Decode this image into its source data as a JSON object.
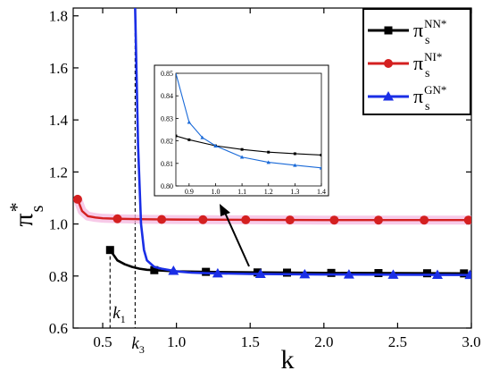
{
  "chart_data": {
    "type": "line",
    "xlabel": "k",
    "ylabel": "π",
    "ylabel_sup": "*",
    "ylabel_sub": "s",
    "xlim": [
      0.3,
      3.0
    ],
    "ylim": [
      0.6,
      1.83
    ],
    "xticks": [
      0.5,
      1.0,
      1.5,
      2.0,
      2.5,
      3.0
    ],
    "xtick_labels": [
      "0.5",
      "1.0",
      "1.5",
      "2.0",
      "2.5",
      "3.0"
    ],
    "yticks": [
      0.6,
      0.8,
      1.0,
      1.2,
      1.4,
      1.6,
      1.8
    ],
    "ytick_labels": [
      "0.6",
      "0.8",
      "1.0",
      "1.2",
      "1.4",
      "1.6",
      "1.8"
    ],
    "legend_position": "top-right",
    "series": [
      {
        "key": "nn",
        "name_base": "π",
        "name_sub": "s",
        "name_sup": "NN*",
        "color": "#000000",
        "marker": "square",
        "x": [
          0.55,
          0.6,
          0.65,
          0.7,
          0.75,
          0.8,
          0.9,
          1.0,
          1.2,
          1.5,
          2.0,
          2.5,
          3.0
        ],
        "y": [
          0.9,
          0.86,
          0.845,
          0.835,
          0.828,
          0.824,
          0.821,
          0.818,
          0.816,
          0.814,
          0.812,
          0.811,
          0.81
        ],
        "marker_x": [
          0.55,
          0.85,
          1.2,
          1.55,
          1.75,
          2.05,
          2.37,
          2.7,
          2.95
        ]
      },
      {
        "key": "ni",
        "name_base": "π",
        "name_sub": "s",
        "name_sup": "NI*",
        "color": "#d42020",
        "marker": "circle",
        "x": [
          0.33,
          0.36,
          0.4,
          0.45,
          0.5,
          0.6,
          0.8,
          1.0,
          1.5,
          2.0,
          2.5,
          3.0
        ],
        "y": [
          1.095,
          1.05,
          1.03,
          1.025,
          1.022,
          1.02,
          1.018,
          1.017,
          1.016,
          1.015,
          1.015,
          1.015
        ],
        "marker_x": [
          0.33,
          0.6,
          0.9,
          1.18,
          1.47,
          1.77,
          2.07,
          2.37,
          2.68,
          2.98
        ]
      },
      {
        "key": "gn",
        "name_base": "π",
        "name_sub": "s",
        "name_sup": "GN*",
        "color": "#1a2ee6",
        "marker": "triangle",
        "x": [
          0.72,
          0.74,
          0.76,
          0.78,
          0.8,
          0.85,
          0.9,
          1.0,
          1.1,
          1.2,
          1.5,
          2.0,
          2.5,
          3.0
        ],
        "y": [
          1.83,
          1.3,
          1.0,
          0.9,
          0.86,
          0.835,
          0.828,
          0.818,
          0.813,
          0.811,
          0.808,
          0.806,
          0.805,
          0.804
        ],
        "marker_x": [
          0.98,
          1.28,
          1.57,
          1.87,
          2.17,
          2.47,
          2.77,
          2.99
        ]
      }
    ],
    "annotations": [
      {
        "base": "k",
        "sub": "1",
        "x": 0.55
      },
      {
        "base": "k",
        "sub": "3",
        "x": 0.72
      }
    ],
    "inset": {
      "xlim": [
        0.85,
        1.4
      ],
      "ylim": [
        0.8,
        0.85
      ],
      "xticks": [
        0.9,
        1.0,
        1.1,
        1.2,
        1.3,
        1.4
      ],
      "xtick_labels": [
        "0.9",
        "1.0",
        "1.1",
        "1.2",
        "1.3",
        "1.4"
      ],
      "yticks": [
        0.8,
        0.81,
        0.82,
        0.83,
        0.84,
        0.85
      ],
      "ytick_labels": [
        "0.80",
        "0.81",
        "0.82",
        "0.83",
        "0.84",
        "0.85"
      ],
      "series": [
        {
          "key": "nn",
          "color": "#000000",
          "x": [
            0.85,
            0.9,
            1.0,
            1.1,
            1.2,
            1.3,
            1.4
          ],
          "y": [
            0.8222,
            0.8205,
            0.8178,
            0.8162,
            0.815,
            0.8143,
            0.8137
          ]
        },
        {
          "key": "gn",
          "color": "#1a6ad8",
          "x": [
            0.85,
            0.9,
            0.95,
            1.0,
            1.1,
            1.2,
            1.3,
            1.4
          ],
          "y": [
            0.85,
            0.8283,
            0.8215,
            0.8178,
            0.8128,
            0.8105,
            0.8092,
            0.808
          ]
        }
      ]
    }
  }
}
